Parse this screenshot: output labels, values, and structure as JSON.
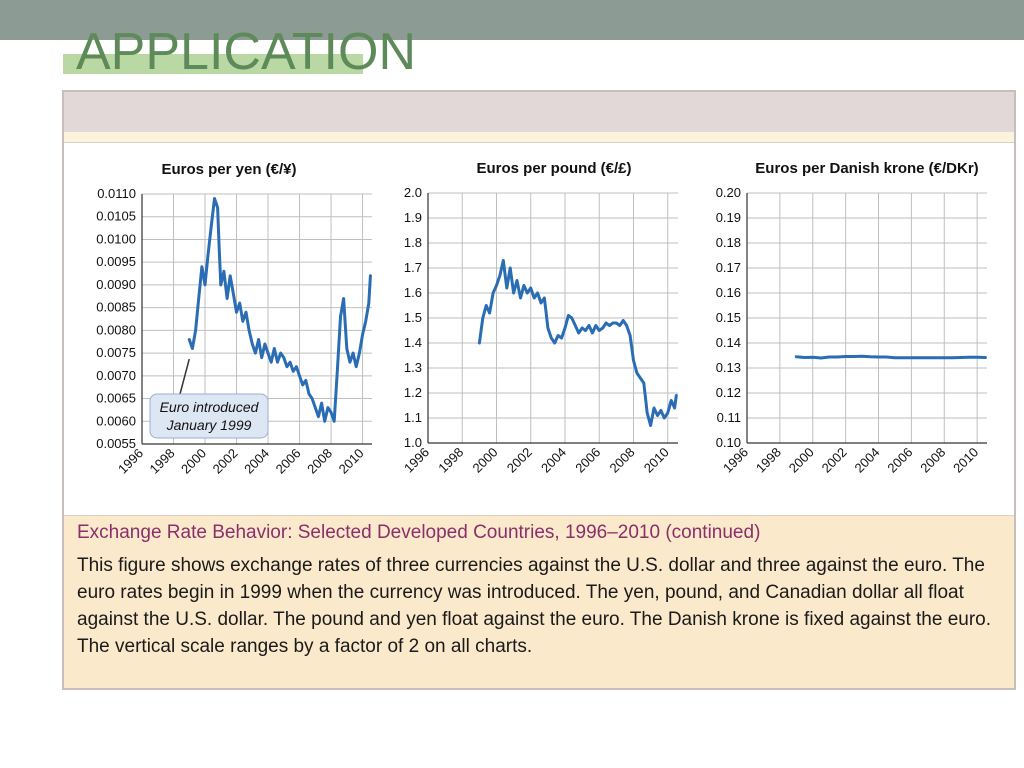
{
  "slide": {
    "title": "APPLICATION"
  },
  "caption": {
    "title": "Exchange Rate Behavior: Selected Developed Countries, 1996–2010 (continued)",
    "body": "This figure shows exchange rates of three currencies against the U.S. dollar and three against the euro. The euro rates begin in 1999 when the currency was introduced. The yen, pound, and Canadian dollar all float against the U.S. dollar. The pound and yen float against the euro. The Danish krone is fixed against the euro. The vertical scale ranges by a factor of 2 on all charts."
  },
  "colors": {
    "line": "#2a6db4",
    "grid": "#bfbfbf",
    "header_bar": "#8c9b93",
    "title_text": "#5e8a5a"
  },
  "chart_data": [
    {
      "type": "line",
      "title": "Euros per yen (€/¥)",
      "xlabel": "",
      "ylabel": "",
      "xlim": [
        1996,
        2010.6
      ],
      "ylim": [
        0.0055,
        0.011
      ],
      "x_ticks": [
        "1996",
        "1998",
        "2000",
        "2002",
        "2004",
        "2006",
        "2008",
        "2010"
      ],
      "y_ticks": [
        "0.0110",
        "0.0105",
        "0.0100",
        "0.0095",
        "0.0090",
        "0.0085",
        "0.0080",
        "0.0075",
        "0.0070",
        "0.0065",
        "0.0060",
        "0.0055"
      ],
      "grid": true,
      "annotation": {
        "text_line1": "Euro introduced",
        "text_line2": "January 1999",
        "x": 1999.0,
        "y": 0.0075
      },
      "series": [
        {
          "x": [
            1999.0,
            1999.2,
            1999.4,
            1999.6,
            1999.8,
            2000.0,
            2000.2,
            2000.4,
            2000.6,
            2000.8,
            2000.9,
            2001.0,
            2001.2,
            2001.4,
            2001.6,
            2001.8,
            2002.0,
            2002.2,
            2002.4,
            2002.6,
            2002.8,
            2003.0,
            2003.2,
            2003.4,
            2003.6,
            2003.8,
            2004.0,
            2004.2,
            2004.4,
            2004.6,
            2004.8,
            2005.0,
            2005.2,
            2005.4,
            2005.6,
            2005.8,
            2006.0,
            2006.2,
            2006.4,
            2006.6,
            2006.8,
            2007.0,
            2007.2,
            2007.4,
            2007.6,
            2007.8,
            2008.0,
            2008.2,
            2008.4,
            2008.6,
            2008.8,
            2009.0,
            2009.2,
            2009.4,
            2009.6,
            2009.8,
            2010.0,
            2010.2,
            2010.4,
            2010.5
          ],
          "y": [
            0.0078,
            0.0076,
            0.008,
            0.0087,
            0.0094,
            0.009,
            0.0097,
            0.0103,
            0.0109,
            0.0107,
            0.0098,
            0.009,
            0.0093,
            0.0087,
            0.0092,
            0.0088,
            0.0084,
            0.0086,
            0.0082,
            0.0084,
            0.008,
            0.0077,
            0.0075,
            0.0078,
            0.0074,
            0.0077,
            0.0075,
            0.0073,
            0.0076,
            0.0073,
            0.0075,
            0.0074,
            0.0072,
            0.0073,
            0.0071,
            0.0072,
            0.007,
            0.0068,
            0.0069,
            0.0066,
            0.0065,
            0.0063,
            0.0061,
            0.0064,
            0.006,
            0.0063,
            0.0062,
            0.006,
            0.0071,
            0.0083,
            0.0087,
            0.0076,
            0.0073,
            0.0075,
            0.0072,
            0.0075,
            0.0079,
            0.0082,
            0.0086,
            0.0092
          ]
        }
      ]
    },
    {
      "type": "line",
      "title": "Euros per pound (€/£)",
      "xlabel": "",
      "ylabel": "",
      "xlim": [
        1996,
        2010.6
      ],
      "ylim": [
        1.0,
        2.0
      ],
      "x_ticks": [
        "1996",
        "1998",
        "2000",
        "2002",
        "2004",
        "2006",
        "2008",
        "2010"
      ],
      "y_ticks": [
        "2.0",
        "1.9",
        "1.8",
        "1.7",
        "1.6",
        "1.5",
        "1.4",
        "1.3",
        "1.2",
        "1.1",
        "1.0"
      ],
      "grid": true,
      "series": [
        {
          "x": [
            1999.0,
            1999.2,
            1999.4,
            1999.6,
            1999.8,
            2000.0,
            2000.2,
            2000.4,
            2000.6,
            2000.8,
            2001.0,
            2001.2,
            2001.4,
            2001.6,
            2001.8,
            2002.0,
            2002.2,
            2002.4,
            2002.6,
            2002.8,
            2003.0,
            2003.2,
            2003.4,
            2003.6,
            2003.8,
            2004.0,
            2004.2,
            2004.4,
            2004.6,
            2004.8,
            2005.0,
            2005.2,
            2005.4,
            2005.6,
            2005.8,
            2006.0,
            2006.2,
            2006.4,
            2006.6,
            2006.8,
            2007.0,
            2007.2,
            2007.4,
            2007.6,
            2007.8,
            2008.0,
            2008.2,
            2008.4,
            2008.6,
            2008.8,
            2009.0,
            2009.2,
            2009.4,
            2009.6,
            2009.8,
            2010.0,
            2010.2,
            2010.4,
            2010.5
          ],
          "y": [
            1.4,
            1.5,
            1.55,
            1.52,
            1.6,
            1.63,
            1.67,
            1.73,
            1.62,
            1.7,
            1.6,
            1.65,
            1.58,
            1.63,
            1.6,
            1.62,
            1.58,
            1.6,
            1.56,
            1.58,
            1.46,
            1.42,
            1.4,
            1.43,
            1.42,
            1.46,
            1.51,
            1.5,
            1.47,
            1.44,
            1.46,
            1.45,
            1.47,
            1.44,
            1.47,
            1.45,
            1.46,
            1.48,
            1.47,
            1.48,
            1.48,
            1.47,
            1.49,
            1.47,
            1.43,
            1.33,
            1.28,
            1.26,
            1.24,
            1.12,
            1.07,
            1.14,
            1.11,
            1.13,
            1.1,
            1.12,
            1.17,
            1.14,
            1.19
          ]
        }
      ]
    },
    {
      "type": "line",
      "title": "Euros per Danish krone (€/DKr)",
      "xlabel": "",
      "ylabel": "",
      "xlim": [
        1996,
        2010.6
      ],
      "ylim": [
        0.1,
        0.2
      ],
      "x_ticks": [
        "1996",
        "1998",
        "2000",
        "2002",
        "2004",
        "2006",
        "2008",
        "2010"
      ],
      "y_ticks": [
        "0.20",
        "0.19",
        "0.18",
        "0.17",
        "0.16",
        "0.15",
        "0.14",
        "0.13",
        "0.12",
        "0.11",
        "0.10"
      ],
      "grid": true,
      "series": [
        {
          "x": [
            1999.0,
            1999.5,
            2000.0,
            2000.5,
            2001.0,
            2001.5,
            2002.0,
            2002.5,
            2003.0,
            2003.5,
            2004.0,
            2004.5,
            2005.0,
            2005.5,
            2006.0,
            2006.5,
            2007.0,
            2007.5,
            2008.0,
            2008.5,
            2009.0,
            2009.5,
            2010.0,
            2010.5
          ],
          "y": [
            0.1345,
            0.1342,
            0.1343,
            0.134,
            0.1344,
            0.1344,
            0.1346,
            0.1346,
            0.1347,
            0.1345,
            0.1344,
            0.1344,
            0.1341,
            0.1341,
            0.1341,
            0.1341,
            0.1341,
            0.1341,
            0.1341,
            0.1341,
            0.1342,
            0.1343,
            0.1343,
            0.1342
          ]
        }
      ]
    }
  ]
}
